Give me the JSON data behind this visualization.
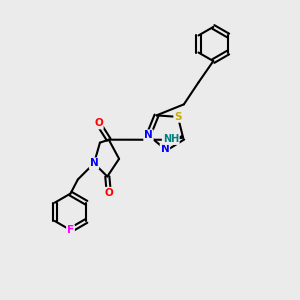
{
  "background_color": "#ebebeb",
  "bond_color": "#000000",
  "atom_colors": {
    "O": "#ff0000",
    "N": "#0000ff",
    "S": "#ccaa00",
    "F": "#ff00ff",
    "NH": "#008080",
    "C": "#000000"
  },
  "figsize": [
    3.0,
    3.0
  ],
  "dpi": 100
}
